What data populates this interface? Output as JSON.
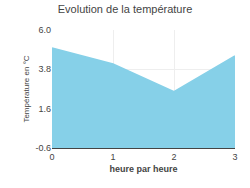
{
  "chart_data": {
    "type": "area",
    "title": "Evolution de la température",
    "xlabel": "heure par heure",
    "ylabel": "Température en °C",
    "x": [
      0,
      1,
      2,
      3
    ],
    "values": [
      5.0,
      4.1,
      2.55,
      4.55
    ],
    "color": "#86d0e8",
    "xlim": [
      0,
      3
    ],
    "ylim": [
      -0.6,
      6.0
    ],
    "xticks": [
      0,
      1,
      2,
      3
    ],
    "yticks": [
      -0.6,
      1.6,
      3.8,
      {
        "value": 6.0,
        "label": "6.0"
      }
    ],
    "grid": true
  }
}
